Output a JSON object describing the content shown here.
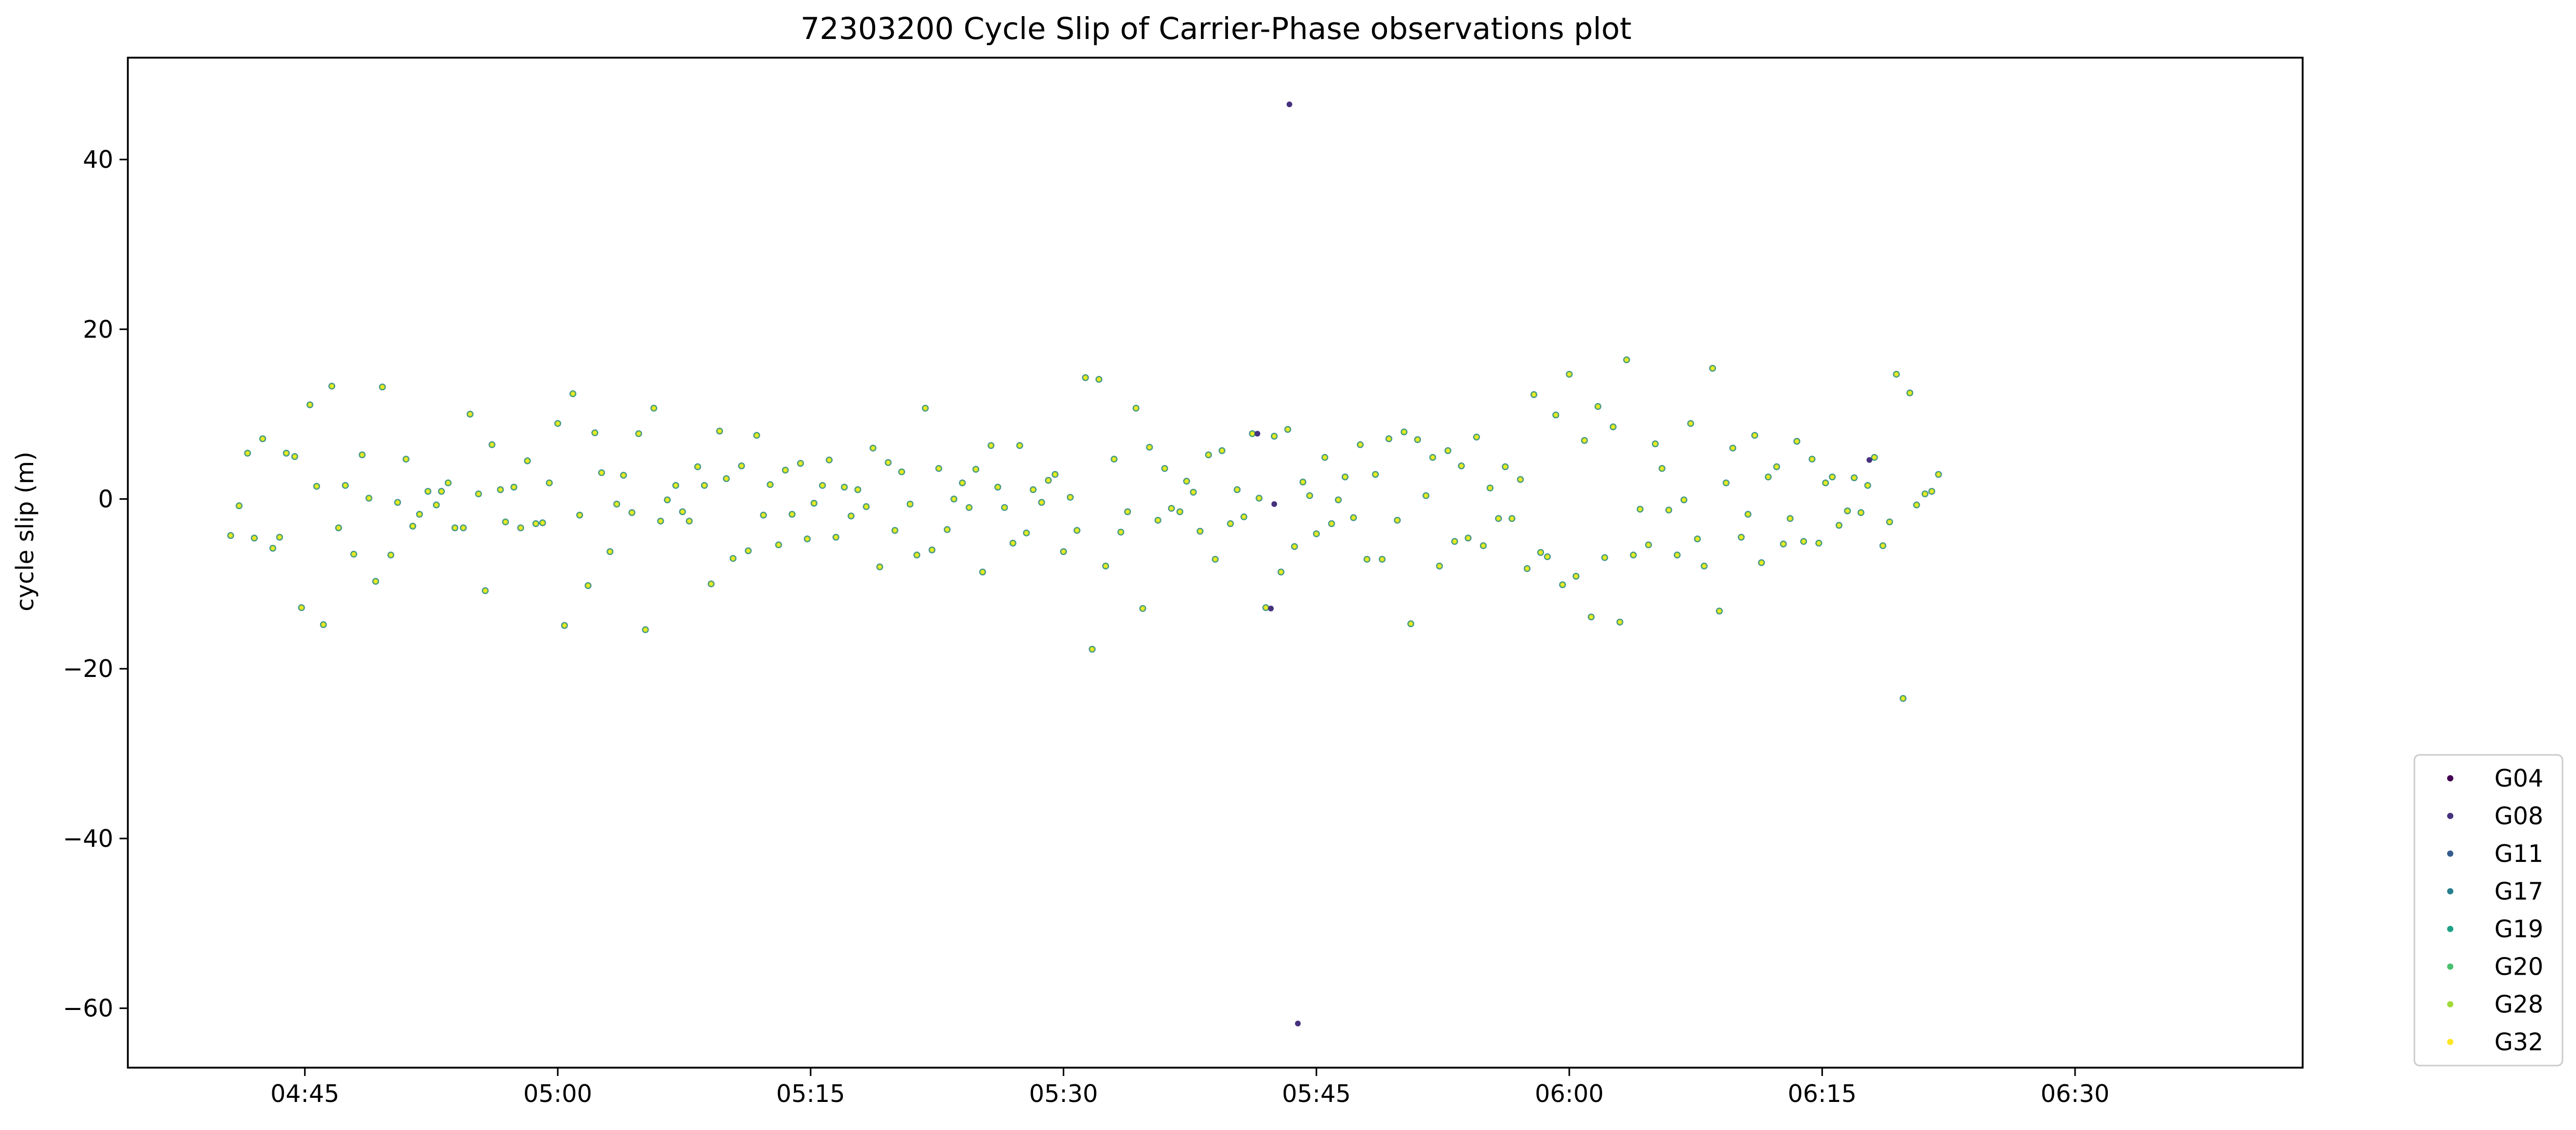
{
  "chart_data": {
    "type": "scatter",
    "title": "72303200 Cycle Slip of Carrier-Phase observations plot",
    "xlabel": "",
    "ylabel": "cycle slip (m)",
    "x_tick_labels": [
      "04:45",
      "05:00",
      "05:15",
      "05:30",
      "05:45",
      "06:00",
      "06:15",
      "06:30"
    ],
    "x_tick_minutes": [
      285,
      300,
      315,
      330,
      345,
      360,
      375,
      390
    ],
    "xlim_minutes": [
      274.5,
      403.5
    ],
    "y_ticks": [
      40,
      20,
      0,
      -20,
      -40,
      -60
    ],
    "y_tick_labels": [
      "40",
      "20",
      "0",
      "−20",
      "−40",
      "−60"
    ],
    "ylim": [
      -67,
      52
    ],
    "grid": false,
    "legend_position": "outside-bottom-right",
    "series": [
      {
        "name": "G04",
        "color": "#440154"
      },
      {
        "name": "G08",
        "color": "#46327e"
      },
      {
        "name": "G11",
        "color": "#365c8d"
      },
      {
        "name": "G17",
        "color": "#277f8e"
      },
      {
        "name": "G19",
        "color": "#1fa187"
      },
      {
        "name": "G20",
        "color": "#4ac16d"
      },
      {
        "name": "G28",
        "color": "#a0da39"
      },
      {
        "name": "G32",
        "color": "#fde725"
      }
    ],
    "points": [
      {
        "t": 280.6,
        "v": -4.3
      },
      {
        "t": 281.1,
        "v": -0.8
      },
      {
        "t": 281.6,
        "v": 5.4
      },
      {
        "t": 282.0,
        "v": -4.6
      },
      {
        "t": 282.5,
        "v": 7.1
      },
      {
        "t": 283.1,
        "v": -5.8
      },
      {
        "t": 283.5,
        "v": -4.5
      },
      {
        "t": 283.9,
        "v": 5.4
      },
      {
        "t": 284.4,
        "v": 5.0
      },
      {
        "t": 284.8,
        "v": -12.8
      },
      {
        "t": 285.3,
        "v": 11.1
      },
      {
        "t": 285.7,
        "v": 1.5
      },
      {
        "t": 286.1,
        "v": -14.8
      },
      {
        "t": 286.6,
        "v": 13.3
      },
      {
        "t": 287.0,
        "v": -3.4
      },
      {
        "t": 287.4,
        "v": 1.6
      },
      {
        "t": 287.9,
        "v": -6.5
      },
      {
        "t": 288.4,
        "v": 5.2
      },
      {
        "t": 288.8,
        "v": 0.1
      },
      {
        "t": 289.2,
        "v": -9.7
      },
      {
        "t": 289.6,
        "v": 13.2
      },
      {
        "t": 290.1,
        "v": -6.6
      },
      {
        "t": 290.5,
        "v": -0.4
      },
      {
        "t": 291.0,
        "v": 4.7
      },
      {
        "t": 291.4,
        "v": -3.2
      },
      {
        "t": 291.8,
        "v": -1.8
      },
      {
        "t": 292.3,
        "v": 0.9
      },
      {
        "t": 292.8,
        "v": -0.7
      },
      {
        "t": 293.1,
        "v": 0.9
      },
      {
        "t": 293.5,
        "v": 1.9
      },
      {
        "t": 293.9,
        "v": -3.4
      },
      {
        "t": 294.4,
        "v": -3.4
      },
      {
        "t": 294.8,
        "v": 10.0
      },
      {
        "t": 295.3,
        "v": 0.6
      },
      {
        "t": 295.7,
        "v": -10.8
      },
      {
        "t": 296.1,
        "v": 6.4
      },
      {
        "t": 296.6,
        "v": 1.1
      },
      {
        "t": 296.9,
        "v": -2.7
      },
      {
        "t": 297.4,
        "v": 1.4
      },
      {
        "t": 297.8,
        "v": -3.4
      },
      {
        "t": 298.2,
        "v": 4.5
      },
      {
        "t": 298.7,
        "v": -2.9
      },
      {
        "t": 299.1,
        "v": -2.8
      },
      {
        "t": 299.5,
        "v": 1.9
      },
      {
        "t": 300.0,
        "v": 8.9
      },
      {
        "t": 300.4,
        "v": -14.9
      },
      {
        "t": 300.9,
        "v": 12.4
      },
      {
        "t": 301.3,
        "v": -1.9
      },
      {
        "t": 301.8,
        "v": -10.2
      },
      {
        "t": 302.2,
        "v": 7.8
      },
      {
        "t": 302.6,
        "v": 3.1
      },
      {
        "t": 303.1,
        "v": -6.2
      },
      {
        "t": 303.5,
        "v": -0.6
      },
      {
        "t": 303.9,
        "v": 2.8
      },
      {
        "t": 304.4,
        "v": -1.6
      },
      {
        "t": 304.8,
        "v": 7.7
      },
      {
        "t": 305.2,
        "v": -15.4
      },
      {
        "t": 305.7,
        "v": 10.7
      },
      {
        "t": 306.1,
        "v": -2.6
      },
      {
        "t": 306.5,
        "v": -0.1
      },
      {
        "t": 307.0,
        "v": 1.6
      },
      {
        "t": 307.4,
        "v": -1.5
      },
      {
        "t": 307.8,
        "v": -2.6
      },
      {
        "t": 308.3,
        "v": 3.8
      },
      {
        "t": 308.7,
        "v": 1.6
      },
      {
        "t": 309.1,
        "v": -10.0
      },
      {
        "t": 309.6,
        "v": 8.0
      },
      {
        "t": 310.0,
        "v": 2.4
      },
      {
        "t": 310.4,
        "v": -7.0
      },
      {
        "t": 310.9,
        "v": 3.9
      },
      {
        "t": 311.3,
        "v": -6.1
      },
      {
        "t": 311.8,
        "v": 7.5
      },
      {
        "t": 312.2,
        "v": -1.9
      },
      {
        "t": 312.6,
        "v": 1.7
      },
      {
        "t": 313.1,
        "v": -5.4
      },
      {
        "t": 313.5,
        "v": 3.4
      },
      {
        "t": 313.9,
        "v": -1.8
      },
      {
        "t": 314.4,
        "v": 4.2
      },
      {
        "t": 314.8,
        "v": -4.7
      },
      {
        "t": 315.2,
        "v": -0.5
      },
      {
        "t": 315.7,
        "v": 1.6
      },
      {
        "t": 316.1,
        "v": 4.6
      },
      {
        "t": 316.5,
        "v": -4.5
      },
      {
        "t": 317.0,
        "v": 1.4
      },
      {
        "t": 317.4,
        "v": -2.0
      },
      {
        "t": 317.8,
        "v": 1.1
      },
      {
        "t": 318.3,
        "v": -0.9
      },
      {
        "t": 318.7,
        "v": 6.0
      },
      {
        "t": 319.1,
        "v": -8.0
      },
      {
        "t": 319.6,
        "v": 4.3
      },
      {
        "t": 320.0,
        "v": -3.7
      },
      {
        "t": 320.4,
        "v": 3.2
      },
      {
        "t": 320.9,
        "v": -0.6
      },
      {
        "t": 321.3,
        "v": -6.6
      },
      {
        "t": 321.8,
        "v": 10.7
      },
      {
        "t": 322.2,
        "v": -6.0
      },
      {
        "t": 322.6,
        "v": 3.6
      },
      {
        "t": 323.1,
        "v": -3.6
      },
      {
        "t": 323.5,
        "v": 0.0
      },
      {
        "t": 324.0,
        "v": 1.9
      },
      {
        "t": 324.4,
        "v": -1.0
      },
      {
        "t": 324.8,
        "v": 3.5
      },
      {
        "t": 325.2,
        "v": -8.6
      },
      {
        "t": 325.7,
        "v": 6.3
      },
      {
        "t": 326.1,
        "v": 1.4
      },
      {
        "t": 326.5,
        "v": -1.0
      },
      {
        "t": 327.0,
        "v": -5.2
      },
      {
        "t": 327.4,
        "v": 6.3
      },
      {
        "t": 327.8,
        "v": -4.0
      },
      {
        "t": 328.2,
        "v": 1.1
      },
      {
        "t": 328.7,
        "v": -0.4
      },
      {
        "t": 329.1,
        "v": 2.2
      },
      {
        "t": 329.5,
        "v": 2.9
      },
      {
        "t": 330.0,
        "v": -6.2
      },
      {
        "t": 330.4,
        "v": 0.2
      },
      {
        "t": 330.8,
        "v": -3.7
      },
      {
        "t": 331.3,
        "v": 14.3
      },
      {
        "t": 331.7,
        "v": -17.7
      },
      {
        "t": 332.1,
        "v": 14.1
      },
      {
        "t": 332.5,
        "v": -7.9
      },
      {
        "t": 333.0,
        "v": 4.7
      },
      {
        "t": 333.4,
        "v": -3.9
      },
      {
        "t": 333.8,
        "v": -1.5
      },
      {
        "t": 334.3,
        "v": 10.7
      },
      {
        "t": 334.7,
        "v": -12.9
      },
      {
        "t": 335.1,
        "v": 6.1
      },
      {
        "t": 335.6,
        "v": -2.5
      },
      {
        "t": 336.0,
        "v": 3.6
      },
      {
        "t": 336.4,
        "v": -1.1
      },
      {
        "t": 336.9,
        "v": -1.5
      },
      {
        "t": 337.3,
        "v": 2.1
      },
      {
        "t": 337.7,
        "v": 0.8
      },
      {
        "t": 338.1,
        "v": -3.8
      },
      {
        "t": 338.6,
        "v": 5.2
      },
      {
        "t": 339.0,
        "v": -7.1
      },
      {
        "t": 339.4,
        "v": 5.7
      },
      {
        "t": 339.9,
        "v": -2.9
      },
      {
        "t": 340.3,
        "v": 1.1
      },
      {
        "t": 340.7,
        "v": -2.1
      },
      {
        "t": 341.2,
        "v": 7.7
      },
      {
        "t": 341.6,
        "v": 0.1
      },
      {
        "t": 342.0,
        "v": -12.8
      },
      {
        "t": 342.5,
        "v": -0.6
      },
      {
        "t": 342.5,
        "v": 7.4
      },
      {
        "t": 342.9,
        "v": -8.6
      },
      {
        "t": 343.3,
        "v": 8.2
      },
      {
        "t": 343.7,
        "v": -5.6
      },
      {
        "t": 344.2,
        "v": 2.0
      },
      {
        "t": 344.6,
        "v": 0.4
      },
      {
        "t": 345.0,
        "v": -4.1
      },
      {
        "t": 345.5,
        "v": 4.9
      },
      {
        "t": 345.9,
        "v": -2.9
      },
      {
        "t": 346.3,
        "v": -0.1
      },
      {
        "t": 346.7,
        "v": 2.6
      },
      {
        "t": 347.2,
        "v": -2.2
      },
      {
        "t": 347.6,
        "v": 6.4
      },
      {
        "t": 348.0,
        "v": -7.1
      },
      {
        "t": 348.5,
        "v": 2.9
      },
      {
        "t": 348.9,
        "v": -7.1
      },
      {
        "t": 349.3,
        "v": 7.1
      },
      {
        "t": 349.8,
        "v": -2.5
      },
      {
        "t": 350.2,
        "v": 7.9
      },
      {
        "t": 350.6,
        "v": -14.7
      },
      {
        "t": 351.0,
        "v": 7.0
      },
      {
        "t": 351.5,
        "v": 0.4
      },
      {
        "t": 351.9,
        "v": 4.9
      },
      {
        "t": 352.3,
        "v": -7.9
      },
      {
        "t": 352.8,
        "v": 5.7
      },
      {
        "t": 353.2,
        "v": -5.0
      },
      {
        "t": 353.6,
        "v": 3.9
      },
      {
        "t": 354.0,
        "v": -4.6
      },
      {
        "t": 354.5,
        "v": 7.3
      },
      {
        "t": 354.9,
        "v": -5.5
      },
      {
        "t": 355.3,
        "v": 1.3
      },
      {
        "t": 355.8,
        "v": -2.3
      },
      {
        "t": 356.2,
        "v": 3.8
      },
      {
        "t": 356.6,
        "v": -2.3
      },
      {
        "t": 357.1,
        "v": 2.3
      },
      {
        "t": 357.5,
        "v": -8.2
      },
      {
        "t": 357.9,
        "v": 12.3
      },
      {
        "t": 358.3,
        "v": -6.3
      },
      {
        "t": 358.7,
        "v": -6.8
      },
      {
        "t": 359.2,
        "v": 9.9
      },
      {
        "t": 359.6,
        "v": -10.1
      },
      {
        "t": 360.0,
        "v": 14.7
      },
      {
        "t": 360.4,
        "v": -9.1
      },
      {
        "t": 360.9,
        "v": 6.9
      },
      {
        "t": 361.3,
        "v": -13.9
      },
      {
        "t": 361.7,
        "v": 10.9
      },
      {
        "t": 362.1,
        "v": -6.9
      },
      {
        "t": 362.6,
        "v": 8.5
      },
      {
        "t": 363.0,
        "v": -14.5
      },
      {
        "t": 363.4,
        "v": 16.4
      },
      {
        "t": 363.8,
        "v": -6.6
      },
      {
        "t": 364.2,
        "v": -1.2
      },
      {
        "t": 364.7,
        "v": -5.4
      },
      {
        "t": 365.1,
        "v": 6.5
      },
      {
        "t": 365.5,
        "v": 3.6
      },
      {
        "t": 365.9,
        "v": -1.3
      },
      {
        "t": 366.4,
        "v": -6.6
      },
      {
        "t": 366.8,
        "v": -0.1
      },
      {
        "t": 367.2,
        "v": 8.9
      },
      {
        "t": 367.6,
        "v": -4.7
      },
      {
        "t": 368.0,
        "v": -7.9
      },
      {
        "t": 368.5,
        "v": 15.4
      },
      {
        "t": 368.9,
        "v": -13.2
      },
      {
        "t": 369.3,
        "v": 1.9
      },
      {
        "t": 369.7,
        "v": 6.0
      },
      {
        "t": 370.2,
        "v": -4.5
      },
      {
        "t": 370.6,
        "v": -1.8
      },
      {
        "t": 371.0,
        "v": 7.5
      },
      {
        "t": 371.4,
        "v": -7.5
      },
      {
        "t": 371.8,
        "v": 2.6
      },
      {
        "t": 372.3,
        "v": 3.8
      },
      {
        "t": 372.7,
        "v": -5.3
      },
      {
        "t": 373.1,
        "v": -2.3
      },
      {
        "t": 373.5,
        "v": 6.8
      },
      {
        "t": 373.9,
        "v": -5.0
      },
      {
        "t": 374.4,
        "v": 4.7
      },
      {
        "t": 374.8,
        "v": -5.2
      },
      {
        "t": 375.2,
        "v": 1.9
      },
      {
        "t": 375.6,
        "v": 2.6
      },
      {
        "t": 376.0,
        "v": -3.1
      },
      {
        "t": 376.5,
        "v": -1.4
      },
      {
        "t": 376.9,
        "v": 2.5
      },
      {
        "t": 377.3,
        "v": -1.6
      },
      {
        "t": 377.7,
        "v": 1.6
      },
      {
        "t": 378.1,
        "v": 4.9
      },
      {
        "t": 378.6,
        "v": -5.5
      },
      {
        "t": 379.0,
        "v": -2.7
      },
      {
        "t": 379.4,
        "v": 14.7
      },
      {
        "t": 379.8,
        "v": -23.5
      },
      {
        "t": 380.2,
        "v": 12.5
      },
      {
        "t": 380.6,
        "v": -0.7
      },
      {
        "t": 381.1,
        "v": 0.6
      },
      {
        "t": 381.5,
        "v": 0.9
      },
      {
        "t": 381.9,
        "v": 2.9
      },
      {
        "t": 343.4,
        "v": 46.5
      },
      {
        "t": 343.9,
        "v": -61.8
      },
      {
        "t": 342.3,
        "v": -12.9
      },
      {
        "t": 341.5,
        "v": 7.7
      },
      {
        "t": 377.8,
        "v": 4.6
      }
    ]
  }
}
